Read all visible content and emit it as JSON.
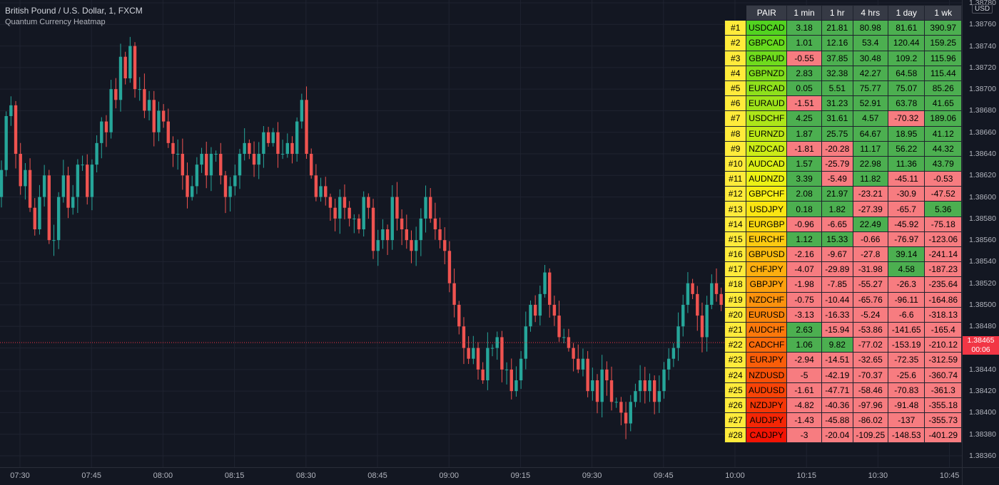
{
  "legend": {
    "symbol_line": "British Pound / U.S. Dollar, 1, FXCM",
    "indicator_name": "Quantum Currency Heatmap"
  },
  "price_axis": {
    "currency": "USD",
    "ticks": [
      "1.38780",
      "1.38760",
      "1.38740",
      "1.38720",
      "1.38700",
      "1.38680",
      "1.38660",
      "1.38640",
      "1.38620",
      "1.38600",
      "1.38580",
      "1.38560",
      "1.38540",
      "1.38520",
      "1.38500",
      "1.38480",
      "1.38460",
      "1.38440",
      "1.38420",
      "1.38400",
      "1.38380",
      "1.38360"
    ],
    "last_price": "1.38465",
    "countdown": "00:06"
  },
  "time_axis": {
    "ticks": [
      "07:30",
      "07:45",
      "08:00",
      "08:15",
      "08:30",
      "08:45",
      "09:00",
      "09:15",
      "09:30",
      "09:45",
      "10:00",
      "10:15",
      "10:30",
      "10:45"
    ]
  },
  "colors": {
    "background": "#131722",
    "bull": "#26a69a",
    "bear": "#ef5350",
    "positive_cell": "#4caf50",
    "negative_cell": "#f77c80",
    "last_price": "#f23645",
    "rank_cell": "#ffeb3b"
  },
  "heatmap": {
    "headers": [
      "PAIR",
      "1 min",
      "1 hr",
      "4 hrs",
      "1 day",
      "1 wk"
    ],
    "rows": [
      {
        "rank": "#1",
        "pair": "USDCAD",
        "color": "#52d320",
        "v": [
          "3.18",
          "21.81",
          "80.98",
          "81.61",
          "390.97"
        ]
      },
      {
        "rank": "#2",
        "pair": "GBPCAD",
        "color": "#66d91e",
        "v": [
          "1.01",
          "12.16",
          "53.4",
          "120.44",
          "159.25"
        ]
      },
      {
        "rank": "#3",
        "pair": "GBPAUD",
        "color": "#6fdb1d",
        "v": [
          "-0.55",
          "37.85",
          "30.48",
          "109.2",
          "115.96"
        ]
      },
      {
        "rank": "#4",
        "pair": "GBPNZD",
        "color": "#80dd1c",
        "v": [
          "2.83",
          "32.38",
          "42.27",
          "64.58",
          "115.44"
        ]
      },
      {
        "rank": "#5",
        "pair": "EURCAD",
        "color": "#8ee01b",
        "v": [
          "0.05",
          "5.51",
          "75.77",
          "75.07",
          "85.26"
        ]
      },
      {
        "rank": "#6",
        "pair": "EURAUD",
        "color": "#9ee31a",
        "v": [
          "-1.51",
          "31.23",
          "52.91",
          "63.78",
          "41.65"
        ]
      },
      {
        "rank": "#7",
        "pair": "USDCHF",
        "color": "#ade619",
        "v": [
          "4.25",
          "31.61",
          "4.57",
          "-70.32",
          "189.06"
        ]
      },
      {
        "rank": "#8",
        "pair": "EURNZD",
        "color": "#bde918",
        "v": [
          "1.87",
          "25.75",
          "64.67",
          "18.95",
          "41.12"
        ]
      },
      {
        "rank": "#9",
        "pair": "NZDCAD",
        "color": "#ccec17",
        "v": [
          "-1.81",
          "-20.28",
          "11.17",
          "56.22",
          "44.32"
        ]
      },
      {
        "rank": "#10",
        "pair": "AUDCAD",
        "color": "#dcef16",
        "v": [
          "1.57",
          "-25.79",
          "22.98",
          "11.36",
          "43.79"
        ]
      },
      {
        "rank": "#11",
        "pair": "AUDNZD",
        "color": "#ecf215",
        "v": [
          "3.39",
          "-5.49",
          "11.82",
          "-45.11",
          "-0.53"
        ]
      },
      {
        "rank": "#12",
        "pair": "GBPCHF",
        "color": "#f6ee14",
        "v": [
          "2.08",
          "21.97",
          "-23.21",
          "-30.9",
          "-47.52"
        ]
      },
      {
        "rank": "#13",
        "pair": "USDJPY",
        "color": "#fae513",
        "v": [
          "0.18",
          "1.82",
          "-27.39",
          "-65.7",
          "5.36"
        ]
      },
      {
        "rank": "#14",
        "pair": "EURGBP",
        "color": "#fbd912",
        "v": [
          "-0.96",
          "-6.65",
          "22.49",
          "-45.92",
          "-75.18"
        ]
      },
      {
        "rank": "#15",
        "pair": "EURCHF",
        "color": "#fcca11",
        "v": [
          "1.12",
          "15.33",
          "-0.66",
          "-76.97",
          "-123.06"
        ]
      },
      {
        "rank": "#16",
        "pair": "GBPUSD",
        "color": "#fcbc10",
        "v": [
          "-2.16",
          "-9.67",
          "-27.8",
          "39.14",
          "-241.14"
        ]
      },
      {
        "rank": "#17",
        "pair": "CHFJPY",
        "color": "#fcae0f",
        "v": [
          "-4.07",
          "-29.89",
          "-31.98",
          "4.58",
          "-187.23"
        ]
      },
      {
        "rank": "#18",
        "pair": "GBPJPY",
        "color": "#fca00e",
        "v": [
          "-1.98",
          "-7.85",
          "-55.27",
          "-26.3",
          "-235.64"
        ]
      },
      {
        "rank": "#19",
        "pair": "NZDCHF",
        "color": "#fc920d",
        "v": [
          "-0.75",
          "-10.44",
          "-65.76",
          "-96.11",
          "-164.86"
        ]
      },
      {
        "rank": "#20",
        "pair": "EURUSD",
        "color": "#fb850c",
        "v": [
          "-3.13",
          "-16.33",
          "-5.24",
          "-6.6",
          "-318.13"
        ]
      },
      {
        "rank": "#21",
        "pair": "AUDCHF",
        "color": "#fb780b",
        "v": [
          "2.63",
          "-15.94",
          "-53.86",
          "-141.65",
          "-165.4"
        ]
      },
      {
        "rank": "#22",
        "pair": "CADCHF",
        "color": "#fa6a0a",
        "v": [
          "1.06",
          "9.82",
          "-77.02",
          "-153.19",
          "-210.12"
        ]
      },
      {
        "rank": "#23",
        "pair": "EURJPY",
        "color": "#f95d09",
        "v": [
          "-2.94",
          "-14.51",
          "-32.65",
          "-72.35",
          "-312.59"
        ]
      },
      {
        "rank": "#24",
        "pair": "NZDUSD",
        "color": "#f85008",
        "v": [
          "-5",
          "-42.19",
          "-70.37",
          "-25.6",
          "-360.74"
        ]
      },
      {
        "rank": "#25",
        "pair": "AUDUSD",
        "color": "#f74307",
        "v": [
          "-1.61",
          "-47.71",
          "-58.46",
          "-70.83",
          "-361.3"
        ]
      },
      {
        "rank": "#26",
        "pair": "NZDJPY",
        "color": "#f53606",
        "v": [
          "-4.82",
          "-40.36",
          "-97.96",
          "-91.48",
          "-355.18"
        ]
      },
      {
        "rank": "#27",
        "pair": "AUDJPY",
        "color": "#f42605",
        "v": [
          "-1.43",
          "-45.88",
          "-86.02",
          "-137",
          "-355.73"
        ]
      },
      {
        "rank": "#28",
        "pair": "CADJPY",
        "color": "#f21404",
        "v": [
          "-3",
          "-20.04",
          "-109.25",
          "-148.53",
          "-401.29"
        ]
      }
    ]
  },
  "chart_data": {
    "type": "candlestick",
    "symbol": "GBPUSD",
    "interval": "1",
    "ylim": [
      1.3835,
      1.3879
    ],
    "grid": true,
    "closes": [
      1.38625,
      1.38675,
      1.38685,
      1.3864,
      1.3861,
      1.38625,
      1.3859,
      1.3857,
      1.386,
      1.3862,
      1.3856,
      1.3856,
      1.386,
      1.3862,
      1.3859,
      1.386,
      1.3863,
      1.3863,
      1.386,
      1.3863,
      1.3865,
      1.3867,
      1.3866,
      1.387,
      1.3869,
      1.3873,
      1.3871,
      1.3874,
      1.387,
      1.387,
      1.3868,
      1.3869,
      1.3866,
      1.3868,
      1.3867,
      1.3865,
      1.3864,
      1.3864,
      1.3862,
      1.386,
      1.3861,
      1.3863,
      1.3864,
      1.3862,
      1.3864,
      1.3864,
      1.3862,
      1.386,
      1.3861,
      1.3862,
      1.3864,
      1.3865,
      1.3864,
      1.3863,
      1.3864,
      1.3866,
      1.3865,
      1.3866,
      1.3864,
      1.3864,
      1.3865,
      1.3864,
      1.3867,
      1.3869,
      1.3864,
      1.3862,
      1.386,
      1.3861,
      1.386,
      1.3859,
      1.3858,
      1.386,
      1.3859,
      1.3858,
      1.3858,
      1.3857,
      1.386,
      1.3859,
      1.3855,
      1.3856,
      1.3857,
      1.3856,
      1.386,
      1.3858,
      1.3857,
      1.3856,
      1.3855,
      1.3856,
      1.3858,
      1.386,
      1.3858,
      1.3857,
      1.3856,
      1.3855,
      1.3852,
      1.385,
      1.3848,
      1.3846,
      1.3845,
      1.3846,
      1.3844,
      1.3843,
      1.3846,
      1.3846,
      1.3847,
      1.3844,
      1.3844,
      1.3842,
      1.3843,
      1.3845,
      1.3848,
      1.385,
      1.3849,
      1.3851,
      1.3853,
      1.385,
      1.3849,
      1.3847,
      1.3847,
      1.3846,
      1.3845,
      1.3844,
      1.3845,
      1.3842,
      1.3843,
      1.3841,
      1.3844,
      1.3843,
      1.3841,
      1.3841,
      1.384,
      1.3839,
      1.3841,
      1.3842,
      1.3843,
      1.3842,
      1.3843,
      1.3841,
      1.3842,
      1.3844,
      1.3845,
      1.3846,
      1.3848,
      1.385,
      1.3852,
      1.3851,
      1.3849,
      1.3847,
      1.385,
      1.3852,
      1.3851,
      1.385,
      1.3851,
      1.3852,
      1.385,
      1.3848,
      1.3849,
      1.3851,
      1.385,
      1.3847,
      1.3848,
      1.385,
      1.3852,
      1.385,
      1.3851,
      1.3853,
      1.3851,
      1.3848,
      1.3847,
      1.38465
    ]
  }
}
